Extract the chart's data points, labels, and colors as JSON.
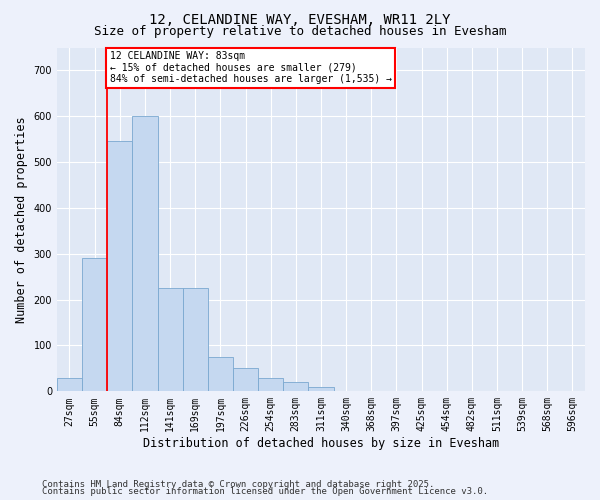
{
  "title_line1": "12, CELANDINE WAY, EVESHAM, WR11 2LY",
  "title_line2": "Size of property relative to detached houses in Evesham",
  "xlabel": "Distribution of detached houses by size in Evesham",
  "ylabel": "Number of detached properties",
  "categories": [
    "27sqm",
    "55sqm",
    "84sqm",
    "112sqm",
    "141sqm",
    "169sqm",
    "197sqm",
    "226sqm",
    "254sqm",
    "283sqm",
    "311sqm",
    "340sqm",
    "368sqm",
    "397sqm",
    "425sqm",
    "454sqm",
    "482sqm",
    "511sqm",
    "539sqm",
    "568sqm",
    "596sqm"
  ],
  "values": [
    30,
    290,
    545,
    600,
    225,
    225,
    75,
    50,
    30,
    20,
    10,
    0,
    0,
    0,
    0,
    0,
    0,
    0,
    0,
    0,
    0
  ],
  "bar_color": "#c5d8f0",
  "bar_edge_color": "#7aa8d0",
  "marker_line_color": "red",
  "annotation_title": "12 CELANDINE WAY: 83sqm",
  "annotation_line2": "← 15% of detached houses are smaller (279)",
  "annotation_line3": "84% of semi-detached houses are larger (1,535) →",
  "ylim": [
    0,
    750
  ],
  "yticks": [
    0,
    100,
    200,
    300,
    400,
    500,
    600,
    700
  ],
  "footer_line1": "Contains HM Land Registry data © Crown copyright and database right 2025.",
  "footer_line2": "Contains public sector information licensed under the Open Government Licence v3.0.",
  "bg_color": "#edf1fb",
  "plot_bg_color": "#e0e8f5",
  "grid_color": "#ffffff",
  "title_fontsize": 10,
  "subtitle_fontsize": 9,
  "axis_fontsize": 8.5,
  "tick_fontsize": 7,
  "footer_fontsize": 6.5
}
